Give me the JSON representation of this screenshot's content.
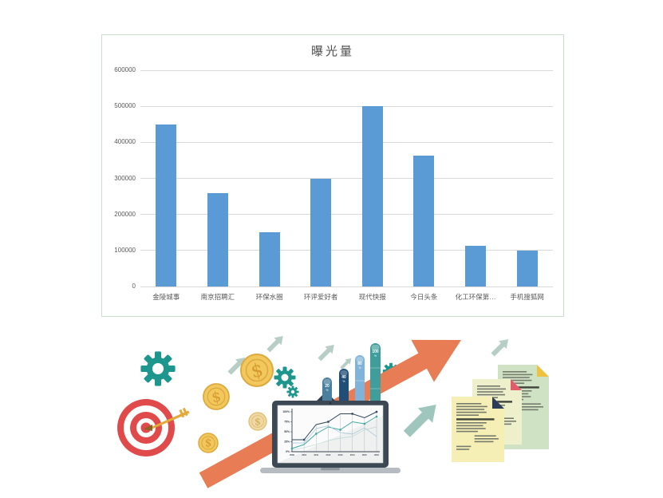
{
  "chart_card": {
    "title": "曝光量",
    "border_color": "#c9dcc9",
    "bar_color": "#5b9bd5",
    "gridline_color": "#d9d9d9",
    "label_color": "#595959"
  },
  "chart_data": [
    {
      "type": "bar",
      "title": "曝光量",
      "categories": [
        "金陵城事",
        "南京招聘汇",
        "环保水圈",
        "环评爱好者",
        "现代快报",
        "今日头条",
        "化工环保第…",
        "手机搜狐网"
      ],
      "values": [
        450000,
        260000,
        150000,
        300000,
        500000,
        363000,
        112000,
        100000
      ],
      "xlabel": "",
      "ylabel": "",
      "ylim": [
        0,
        600000
      ],
      "ytick_step": 100000,
      "ytick_labels": [
        "0",
        "100000",
        "200000",
        "300000",
        "400000",
        "500000",
        "600000"
      ],
      "grid": true,
      "legend": false
    },
    {
      "type": "line",
      "context": "laptop-screen-illustration",
      "x": [
        "2009",
        "2010",
        "2011",
        "2012",
        "2013",
        "2014",
        "2015",
        "2016"
      ],
      "y_tick_labels": [
        "100%",
        "75%",
        "50%",
        "25%",
        "0%"
      ],
      "ylim": [
        0,
        100
      ],
      "series": [
        {
          "name": "dark-navy-line",
          "color": "#33475a",
          "values": [
            30,
            30,
            68,
            75,
            95,
            95,
            85,
            100
          ]
        },
        {
          "name": "teal-line",
          "color": "#43a79f",
          "values": [
            8,
            18,
            45,
            62,
            55,
            75,
            70,
            88
          ]
        },
        {
          "name": "light-blue-line",
          "color": "#9cc5d8",
          "values": [
            22,
            22,
            58,
            65,
            48,
            44,
            60,
            38
          ]
        },
        {
          "name": "pale-teal-line",
          "color": "#c2e0da",
          "values": [
            4,
            10,
            18,
            28,
            34,
            38,
            55,
            62
          ]
        }
      ]
    }
  ],
  "illustration": {
    "coin_symbol": "$",
    "pills": [
      {
        "value": "20",
        "unit": "%",
        "color": "#4a7f9e"
      },
      {
        "value": "40",
        "unit": "%",
        "color": "#1f4e79"
      },
      {
        "value": "80",
        "unit": "%",
        "color": "#7fb3d9"
      },
      {
        "value": "100",
        "unit": "%",
        "color": "#3f9e9b"
      }
    ],
    "colors": {
      "gear_teal": "#1d968d",
      "target_red": "#e14a4a",
      "coin_gold": "#f2c75c",
      "coin_pale": "#f0d9a2",
      "coin_edge": "#dcaa3f",
      "arrow_orange": "#e87c54",
      "arrow_sage": "#b7cec6",
      "arrow_teal": "#9fc6bd",
      "laptop_frame": "#3c4854",
      "laptop_base": "#b6bcc2",
      "doc_green": "#cfe3c4",
      "doc_yellow_green": "#edf0cb",
      "doc_yellow": "#f5efb6",
      "fold_yellow": "#eec23e",
      "fold_red": "#e25b6a",
      "fold_navy": "#2c3e57"
    }
  }
}
